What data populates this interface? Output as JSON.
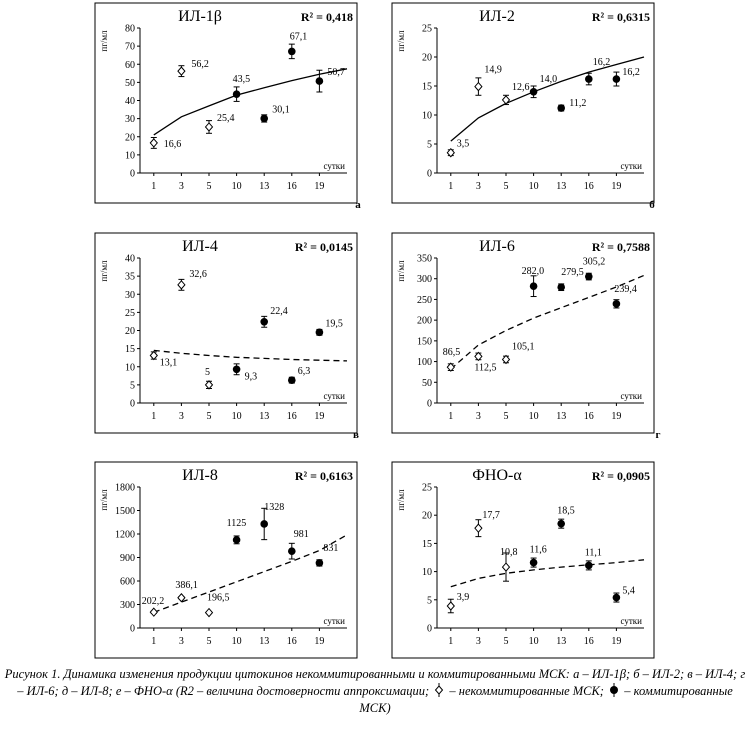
{
  "chart_data": [
    {
      "type": "scatter",
      "letter": "а",
      "title": "ИЛ-1β",
      "r2": "R² = 0,418",
      "ylabel": "пг/мл",
      "xunit": "сутки",
      "categories": [
        "1",
        "3",
        "5",
        "10",
        "13",
        "16",
        "19"
      ],
      "ylim": [
        0,
        80
      ],
      "yticks": [
        "0",
        "10",
        "20",
        "30",
        "40",
        "50",
        "60",
        "70",
        "80"
      ],
      "trend": {
        "style": "solid",
        "values": [
          21,
          31,
          37,
          43,
          47,
          51,
          54.5,
          57.5
        ],
        "xfrom": 0,
        "xto": 7
      }
    },
    {
      "type": "scatter",
      "letter": "б",
      "title": "ИЛ-2",
      "r2": "R² = 0,6315",
      "ylabel": "пг/мл",
      "xunit": "сутки",
      "categories": [
        "1",
        "3",
        "5",
        "10",
        "13",
        "16",
        "19"
      ],
      "ylim": [
        0,
        25
      ],
      "yticks": [
        "0",
        "5",
        "10",
        "15",
        "20",
        "25"
      ],
      "trend": {
        "style": "solid",
        "values": [
          5.5,
          9.5,
          12,
          14,
          15.8,
          17.4,
          18.7,
          20
        ],
        "xfrom": 0,
        "xto": 7
      }
    },
    {
      "type": "scatter",
      "letter": "в",
      "title": "ИЛ-4",
      "r2": "R² = 0,0145",
      "ylabel": "пг/мл",
      "xunit": "сутки",
      "categories": [
        "1",
        "3",
        "5",
        "10",
        "13",
        "16",
        "19"
      ],
      "ylim": [
        0,
        40
      ],
      "yticks": [
        "0",
        "5",
        "10",
        "15",
        "20",
        "25",
        "30",
        "35",
        "40"
      ],
      "trend": {
        "style": "dashed",
        "values": [
          14.5,
          13.7,
          13.1,
          12.6,
          12.3,
          12.0,
          11.8,
          11.6
        ],
        "xfrom": 0,
        "xto": 7
      }
    },
    {
      "type": "scatter",
      "letter": "г",
      "title": "ИЛ-6",
      "r2": "R² = 0,7588",
      "ylabel": "пг/мл",
      "xunit": "сутки",
      "categories": [
        "1",
        "3",
        "5",
        "10",
        "13",
        "16",
        "19"
      ],
      "ylim": [
        0,
        350
      ],
      "yticks": [
        "0",
        "50",
        "100",
        "150",
        "200",
        "250",
        "300",
        "350"
      ],
      "trend": {
        "style": "dashed",
        "values": [
          82,
          140,
          175,
          205,
          230,
          255,
          280,
          308
        ],
        "xfrom": 0,
        "xto": 7
      }
    },
    {
      "type": "scatter",
      "letter": "д",
      "title": "ИЛ-8",
      "r2": "R² = 0,6163",
      "ylabel": "пг/мл",
      "xunit": "сутки",
      "categories": [
        "1",
        "3",
        "5",
        "10",
        "13",
        "16",
        "19"
      ],
      "ylim": [
        0,
        1800
      ],
      "yticks": [
        "0",
        "300",
        "600",
        "900",
        "1200",
        "1500",
        "1800"
      ],
      "trend": {
        "style": "dashed",
        "values": [
          200,
          330,
          460,
          590,
          720,
          850,
          990,
          1190
        ],
        "xfrom": 0,
        "xto": 7
      }
    },
    {
      "type": "scatter",
      "letter": "е",
      "title": "ФНО-α",
      "r2": "R² = 0,0905",
      "ylabel": "пг/мл",
      "xunit": "сутки",
      "categories": [
        "1",
        "3",
        "5",
        "10",
        "13",
        "16",
        "19"
      ],
      "ylim": [
        0,
        25
      ],
      "yticks": [
        "0",
        "5",
        "10",
        "15",
        "20",
        "25"
      ],
      "trend": {
        "style": "dashed",
        "values": [
          7.3,
          8.8,
          9.7,
          10.3,
          10.8,
          11.2,
          11.6,
          12.1
        ],
        "xfrom": 0,
        "xto": 7
      }
    }
  ],
  "points": [
    [
      {
        "x": 0,
        "y": 16.6,
        "err": 3,
        "group": "uncommitted",
        "label": "16,6"
      },
      {
        "x": 1,
        "y": 56.2,
        "err": 3,
        "group": "uncommitted",
        "label": "56,2"
      },
      {
        "x": 2,
        "y": 25.4,
        "err": 3.5,
        "group": "uncommitted",
        "label": "25,4"
      },
      {
        "x": 3,
        "y": 43.5,
        "err": 4,
        "group": "committed",
        "label": "43,5"
      },
      {
        "x": 4,
        "y": 30.1,
        "err": 2,
        "group": "committed",
        "label": "30,1"
      },
      {
        "x": 5,
        "y": 67.1,
        "err": 4,
        "group": "committed",
        "label": "67,1"
      },
      {
        "x": 6,
        "y": 50.7,
        "err": 6,
        "group": "committed",
        "label": "50,7"
      }
    ],
    [
      {
        "x": 0,
        "y": 3.5,
        "err": 0.5,
        "group": "uncommitted",
        "label": "3,5"
      },
      {
        "x": 1,
        "y": 14.9,
        "err": 1.5,
        "group": "uncommitted",
        "label": "14,9"
      },
      {
        "x": 2,
        "y": 12.6,
        "err": 0.8,
        "group": "uncommitted",
        "label": "12,6"
      },
      {
        "x": 3,
        "y": 14.0,
        "err": 1,
        "group": "committed",
        "label": "14,0"
      },
      {
        "x": 4,
        "y": 11.2,
        "err": 0.5,
        "group": "committed",
        "label": "11,2"
      },
      {
        "x": 5,
        "y": 16.2,
        "err": 1,
        "group": "committed",
        "label": "16,2"
      },
      {
        "x": 6,
        "y": 16.2,
        "err": 1.2,
        "group": "committed",
        "label": "16,2"
      }
    ],
    [
      {
        "x": 0,
        "y": 13.1,
        "err": 1,
        "group": "uncommitted",
        "label": "13,1"
      },
      {
        "x": 1,
        "y": 32.6,
        "err": 1.5,
        "group": "uncommitted",
        "label": "32,6"
      },
      {
        "x": 2,
        "y": 5,
        "err": 1,
        "group": "uncommitted",
        "label": "5"
      },
      {
        "x": 3,
        "y": 9.3,
        "err": 1.5,
        "group": "committed",
        "label": "9,3"
      },
      {
        "x": 4,
        "y": 22.4,
        "err": 1.5,
        "group": "committed",
        "label": "22,4"
      },
      {
        "x": 5,
        "y": 6.3,
        "err": 0.8,
        "group": "committed",
        "label": "6,3"
      },
      {
        "x": 6,
        "y": 19.5,
        "err": 0.8,
        "group": "committed",
        "label": "19,5"
      }
    ],
    [
      {
        "x": 0,
        "y": 86.5,
        "err": 8,
        "group": "uncommitted",
        "label": "86,5"
      },
      {
        "x": 1,
        "y": 112.5,
        "err": 8,
        "group": "uncommitted",
        "label": "112,5"
      },
      {
        "x": 2,
        "y": 105.1,
        "err": 8,
        "group": "uncommitted",
        "label": "105,1"
      },
      {
        "x": 3,
        "y": 282.0,
        "err": 25,
        "group": "committed",
        "label": "282,0"
      },
      {
        "x": 4,
        "y": 279.5,
        "err": 8,
        "group": "committed",
        "label": "279,5"
      },
      {
        "x": 5,
        "y": 305.2,
        "err": 8,
        "group": "committed",
        "label": "305,2"
      },
      {
        "x": 6,
        "y": 239.4,
        "err": 10,
        "group": "committed",
        "label": "239,4"
      }
    ],
    [
      {
        "x": 0,
        "y": 202.2,
        "err": 15,
        "group": "uncommitted",
        "label": "202,2"
      },
      {
        "x": 1,
        "y": 386.1,
        "err": 15,
        "group": "uncommitted",
        "label": "386,1"
      },
      {
        "x": 2,
        "y": 196.5,
        "err": 10,
        "group": "uncommitted",
        "label": "196,5"
      },
      {
        "x": 3,
        "y": 1125,
        "err": 50,
        "group": "committed",
        "label": "1125"
      },
      {
        "x": 4,
        "y": 1328,
        "err": 200,
        "group": "committed",
        "label": "1328"
      },
      {
        "x": 5,
        "y": 981,
        "err": 100,
        "group": "committed",
        "label": "981"
      },
      {
        "x": 6,
        "y": 831,
        "err": 40,
        "group": "committed",
        "label": "831"
      }
    ],
    [
      {
        "x": 0,
        "y": 3.9,
        "err": 1.2,
        "group": "uncommitted",
        "label": "3,9"
      },
      {
        "x": 1,
        "y": 17.7,
        "err": 1.5,
        "group": "uncommitted",
        "label": "17,7"
      },
      {
        "x": 2,
        "y": 10.8,
        "err": 2.5,
        "group": "uncommitted",
        "label": "10,8"
      },
      {
        "x": 3,
        "y": 11.6,
        "err": 0.8,
        "group": "committed",
        "label": "11,6"
      },
      {
        "x": 4,
        "y": 18.5,
        "err": 0.8,
        "group": "committed",
        "label": "18,5"
      },
      {
        "x": 5,
        "y": 11.1,
        "err": 0.8,
        "group": "committed",
        "label": "11,1"
      },
      {
        "x": 6,
        "y": 5.4,
        "err": 0.8,
        "group": "committed",
        "label": "5,4"
      }
    ]
  ],
  "caption": {
    "part1": "Рисунок 1. Динамика изменения продукции цитокинов некоммитированными и коммитированными МСК: а – ИЛ-1β; б – ИЛ-2; в – ИЛ-4; г – ИЛ-6; д – ИЛ-8; е – ФНО-α (R2 – величина достоверности аппроксимации;",
    "part2": "– некоммитированные МСК;",
    "part3": "– коммитированные МСК)"
  }
}
